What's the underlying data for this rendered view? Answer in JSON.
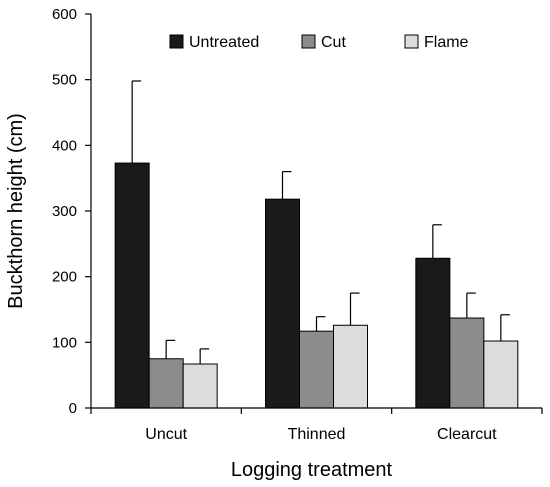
{
  "chart_data": {
    "type": "bar",
    "title": "",
    "xlabel": "Logging treatment",
    "ylabel": "Buckthorn height (cm)",
    "ylim": [
      0,
      600
    ],
    "yticks": [
      0,
      100,
      200,
      300,
      400,
      500,
      600
    ],
    "categories": [
      "Uncut",
      "Thinned",
      "Clearcut"
    ],
    "series": [
      {
        "name": "Untreated",
        "color": "#1a1a1a",
        "values": [
          373,
          318,
          228
        ],
        "errors": [
          125,
          42,
          51
        ]
      },
      {
        "name": "Cut",
        "color": "#8c8c8c",
        "values": [
          75,
          117,
          137
        ],
        "errors": [
          28,
          22,
          38
        ]
      },
      {
        "name": "Flame",
        "color": "#dcdcdc",
        "values": [
          67,
          126,
          102
        ],
        "errors": [
          23,
          49,
          40
        ]
      }
    ],
    "error_bars": "upper",
    "grid": false,
    "legend": {
      "position": "top-right",
      "orientation": "horizontal"
    }
  }
}
